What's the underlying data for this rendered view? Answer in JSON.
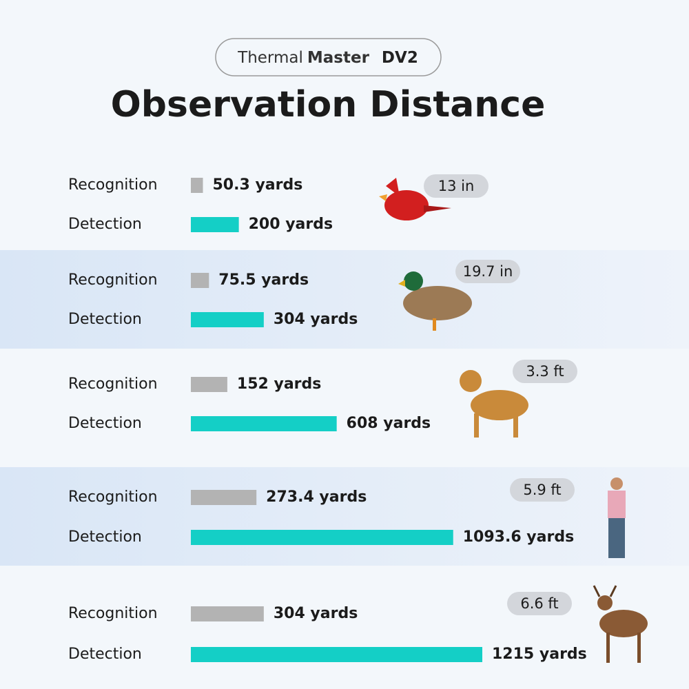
{
  "header": {
    "brand_light": "Thermal",
    "brand_bold": "Master",
    "model": "DV2"
  },
  "chart_data": {
    "type": "bar",
    "title": "Observation Distance",
    "categories": [
      "13 in",
      "19.7 in",
      "3.3 ft",
      "5.9 ft",
      "6.6 ft"
    ],
    "series": [
      {
        "name": "Recognition",
        "color": "#b3b3b3",
        "values": [
          50.3,
          75.5,
          152,
          273.4,
          304
        ],
        "value_labels": [
          "50.3 yards",
          "75.5 yards",
          "152 yards",
          "273.4 yards",
          "304 yards"
        ]
      },
      {
        "name": "Detection",
        "color": "#14cfc6",
        "values": [
          200,
          304,
          608,
          1093.6,
          1215
        ],
        "value_labels": [
          "200 yards",
          "304 yards",
          "608 yards",
          "1093.6 yards",
          "1215 yards"
        ]
      }
    ]
  }
}
